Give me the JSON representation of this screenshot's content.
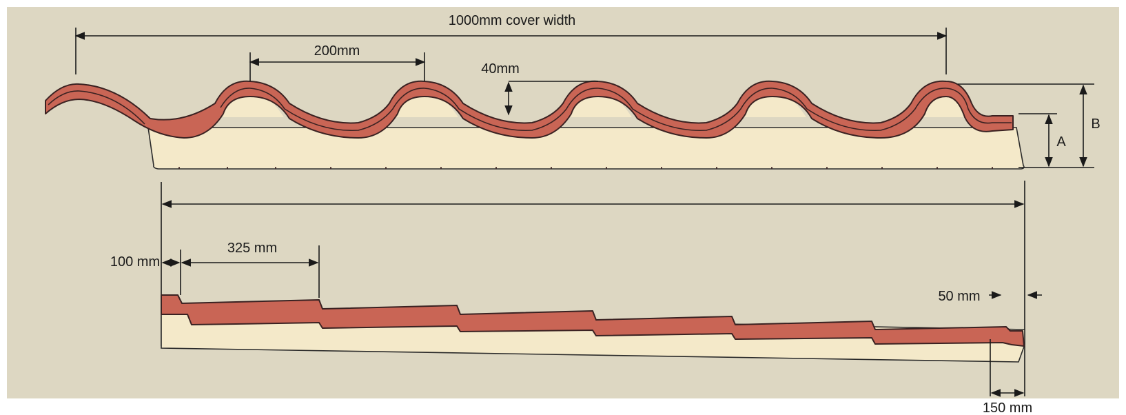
{
  "colors": {
    "background": "#ddd7c2",
    "page": "#ffffff",
    "tile_face": "#c96555",
    "tile_edge": "#3a2222",
    "core": "#f4e9c9"
  },
  "labels": {
    "cover_width": "1000mm cover width",
    "pitch": "200mm",
    "depth": "40mm",
    "height_a": "A",
    "height_b": "B",
    "side_100": "100 mm",
    "step_325": "325 mm",
    "end_50": "50 mm",
    "overlap_150": "150 mm"
  }
}
